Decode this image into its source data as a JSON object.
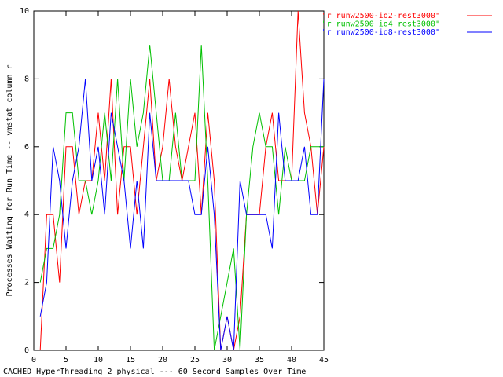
{
  "chart_data": {
    "type": "line",
    "xlabel": "CACHED HyperThreading 2 physical --- 60 Second Samples Over Time",
    "ylabel": "Processes Waiting for Run Time -- vmstat column r",
    "x": [
      1,
      2,
      3,
      4,
      5,
      6,
      7,
      8,
      9,
      10,
      11,
      12,
      13,
      14,
      15,
      16,
      17,
      18,
      19,
      20,
      21,
      22,
      23,
      24,
      25,
      26,
      27,
      28,
      29,
      30,
      31,
      32,
      33,
      34,
      35,
      36,
      37,
      38,
      39,
      40,
      41,
      42,
      43,
      44,
      45
    ],
    "series": [
      {
        "name": "\"r runw2500-io2-rest3000\"",
        "color": "#ff0000",
        "values": [
          0,
          4,
          4,
          2,
          6,
          6,
          4,
          5,
          5,
          7,
          5,
          8,
          4,
          6,
          6,
          4,
          6,
          8,
          5,
          6,
          8,
          6,
          5,
          6,
          7,
          4,
          7,
          5,
          0,
          1,
          0,
          1,
          4,
          4,
          4,
          6,
          7,
          5,
          5,
          5,
          10,
          7,
          6,
          4,
          6
        ]
      },
      {
        "name": "\"r runw2500-io4-rest3000\"",
        "color": "#00c000",
        "values": [
          2,
          3,
          3,
          4,
          7,
          7,
          5,
          5,
          4,
          5,
          7,
          5,
          8,
          5,
          8,
          6,
          7,
          9,
          7,
          5,
          5,
          7,
          5,
          5,
          5,
          9,
          5,
          0,
          1,
          2,
          3,
          0,
          4,
          6,
          7,
          6,
          6,
          4,
          6,
          5,
          5,
          5,
          6,
          6,
          6
        ]
      },
      {
        "name": "\"r runw2500-io8-rest3000\"",
        "color": "#0000ff",
        "values": [
          1,
          2,
          6,
          5,
          3,
          5,
          6,
          8,
          5,
          6,
          4,
          7,
          6,
          5,
          3,
          5,
          3,
          7,
          5,
          5,
          5,
          5,
          5,
          5,
          4,
          4,
          6,
          4,
          0,
          1,
          0,
          5,
          4,
          4,
          4,
          4,
          3,
          7,
          5,
          5,
          5,
          6,
          4,
          4,
          8
        ]
      }
    ],
    "xlim": [
      0,
      45
    ],
    "xticks": [
      0,
      5,
      10,
      15,
      20,
      25,
      30,
      35,
      40,
      45
    ],
    "ylim": [
      0,
      10
    ],
    "yticks": [
      0,
      2,
      4,
      6,
      8,
      10
    ],
    "legend": "top-right"
  }
}
